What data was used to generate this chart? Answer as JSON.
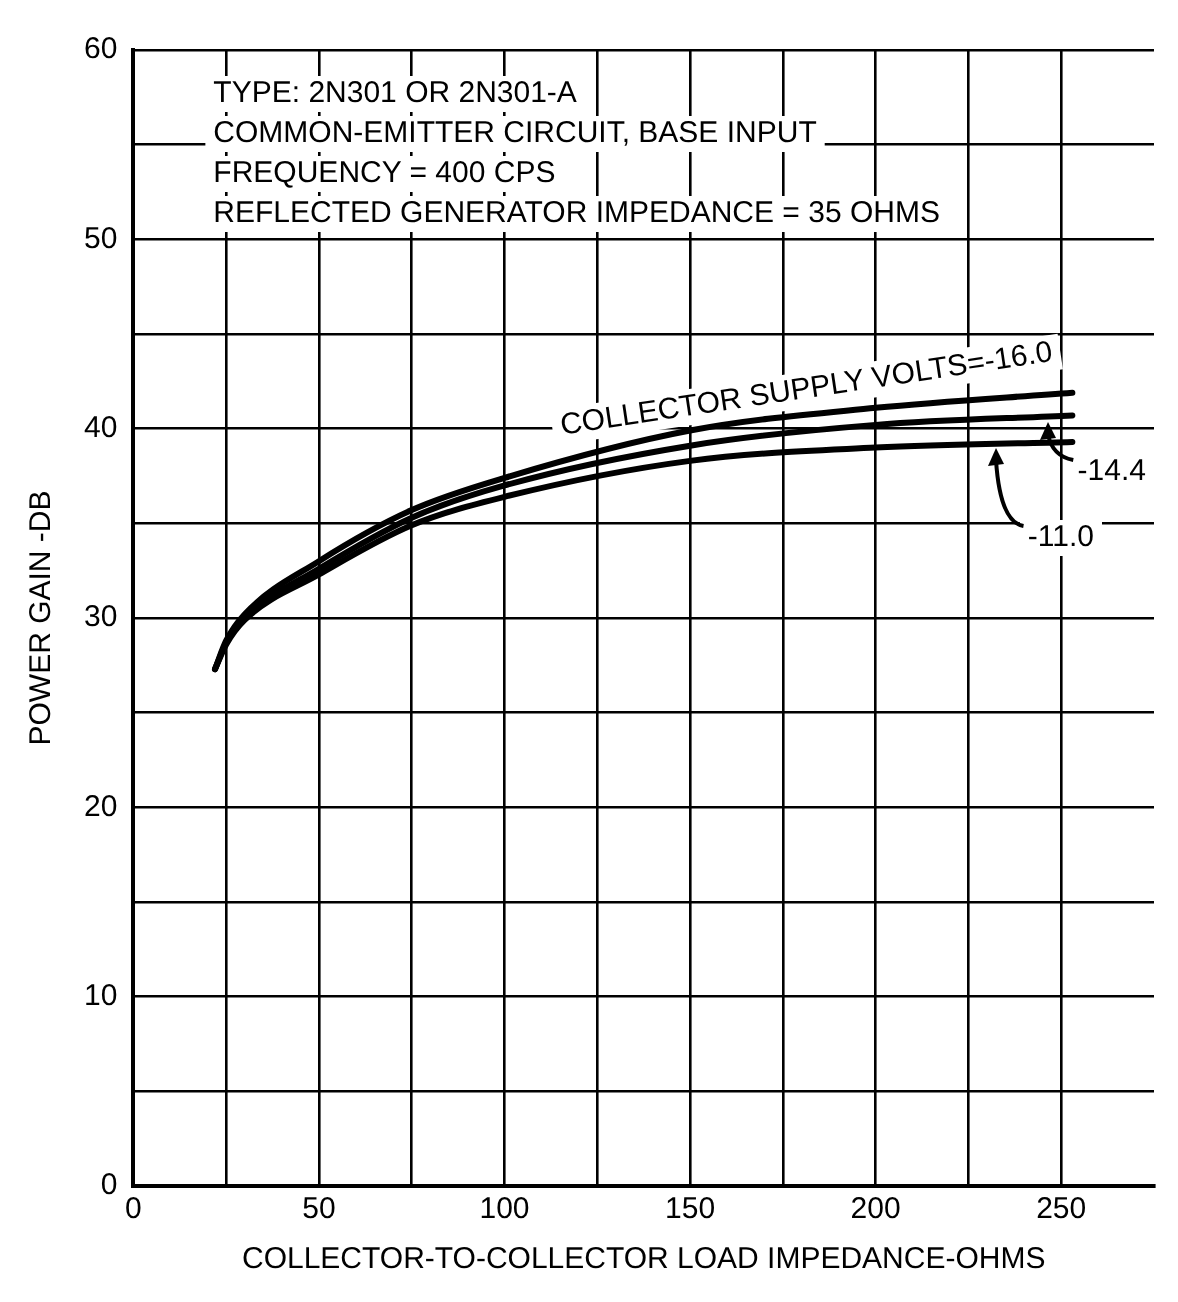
{
  "chart_data": {
    "type": "line",
    "xlabel": "COLLECTOR-TO-COLLECTOR LOAD IMPEDANCE-OHMS",
    "ylabel": "POWER GAIN -DB",
    "annotations": [
      "TYPE: 2N301 OR 2N301-A",
      "COMMON-EMITTER CIRCUIT, BASE INPUT",
      "FREQUENCY = 400 CPS",
      "REFLECTED GENERATOR IMPEDANCE = 35 OHMS"
    ],
    "series": [
      {
        "name": "COLLECTOR SUPPLY VOLTS=-16.0",
        "color": "#000000",
        "x": [
          22,
          25,
          30,
          50,
          75,
          100,
          150,
          200,
          253
        ],
        "values": [
          27.3,
          28.8,
          30.2,
          33.0,
          35.7,
          37.4,
          39.9,
          41.1,
          41.9
        ]
      },
      {
        "name": "-14.4",
        "color": "#000000",
        "x": [
          22,
          25,
          30,
          50,
          75,
          100,
          150,
          200,
          253
        ],
        "values": [
          27.3,
          28.7,
          30.0,
          32.6,
          35.3,
          37.0,
          39.1,
          40.2,
          40.7
        ]
      },
      {
        "name": "-11.0",
        "color": "#000000",
        "x": [
          22,
          25,
          30,
          50,
          75,
          100,
          150,
          200,
          253
        ],
        "values": [
          27.3,
          28.6,
          29.9,
          32.3,
          34.9,
          36.4,
          38.3,
          39.0,
          39.3
        ]
      }
    ],
    "xlim": [
      0,
      275
    ],
    "xticks": [
      0,
      {
        "value": 25,
        "label": null
      },
      50,
      {
        "value": 75,
        "label": null
      },
      100,
      {
        "value": 125,
        "label": null
      },
      150,
      {
        "value": 175,
        "label": null
      },
      200,
      {
        "value": 225,
        "label": null
      },
      250
    ],
    "ylim": [
      0,
      60
    ],
    "yticks": [
      0,
      {
        "value": 5,
        "label": null
      },
      10,
      {
        "value": 15,
        "label": null
      },
      20,
      {
        "value": 25,
        "label": null
      },
      30,
      {
        "value": 35,
        "label": null
      },
      40,
      {
        "value": 45,
        "label": null
      },
      50,
      {
        "value": 55,
        "label": null
      },
      60
    ],
    "grid": true,
    "legend": "right",
    "marker": "none",
    "line_style": "solid"
  }
}
